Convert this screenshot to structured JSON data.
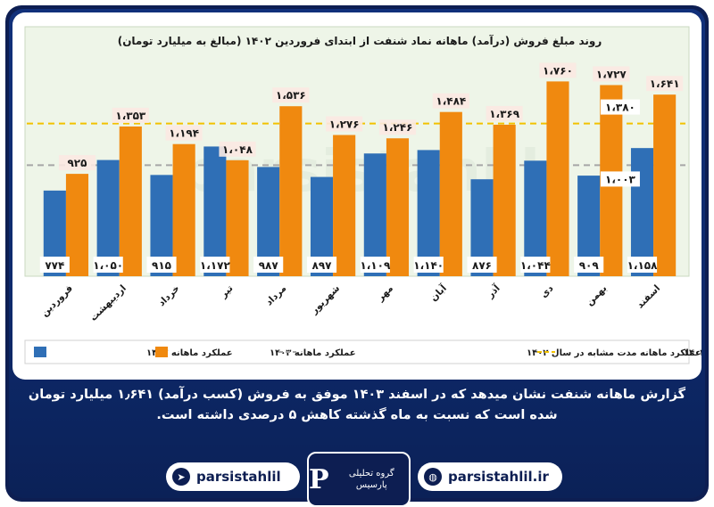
{
  "chart_data": {
    "type": "bar",
    "title": "روند مبلغ فروش (درآمد) ماهانه نماد شنفت از ابتدای فروردین ۱۴۰۲ (مبالغ به میلیارد تومان)",
    "categories": [
      "فروردین",
      "اردیبهشت",
      "خرداد",
      "تیر",
      "مرداد",
      "شهریور",
      "مهر",
      "آبان",
      "آذر",
      "دی",
      "بهمن",
      "اسفند"
    ],
    "series": [
      {
        "name": "عملکرد ماهانه ۱۴۰۲",
        "color": "#2f6fb6",
        "values": [
          774,
          1050,
          915,
          1172,
          987,
          897,
          1109,
          1140,
          876,
          1044,
          909,
          1158
        ],
        "labels": [
          "۷۷۴",
          "۱،۰۵۰",
          "۹۱۵",
          "۱،۱۷۲",
          "۹۸۷",
          "۸۹۷",
          "۱،۱۰۹",
          "۱،۱۴۰",
          "۸۷۶",
          "۱،۰۴۴",
          "۹۰۹",
          "۱،۱۵۸"
        ]
      },
      {
        "name": "عملکرد ماهانه ۱۴۰۳",
        "color": "#f0890f",
        "values": [
          925,
          1353,
          1194,
          1048,
          1536,
          1276,
          1246,
          1484,
          1369,
          1760,
          1727,
          1641
        ],
        "labels": [
          "۹۲۵",
          "۱،۳۵۳",
          "۱،۱۹۴",
          "۱،۰۴۸",
          "۱،۵۳۶",
          "۱،۲۷۶",
          "۱،۲۴۶",
          "۱،۴۸۴",
          "۱،۳۶۹",
          "۱،۷۶۰",
          "۱،۷۲۷",
          "۱،۶۴۱"
        ]
      }
    ],
    "reference_lines": [
      {
        "name": "میانگین عملکرد ماهانه ۱۴۰۳",
        "value": 1380,
        "label": "۱،۳۸۰",
        "color": "#f2c200"
      },
      {
        "name": "میانگین عملکرد ماهانه مدت مشابه در سال ۱۴۰۲",
        "value": 1003,
        "label": "۱،۰۰۳",
        "color": "#a6a6a6"
      }
    ],
    "ylim": [
      0,
      1900
    ],
    "grid": false,
    "legend_position": "bottom"
  },
  "caption": "گزارش ماهانه شنفت نشان میدهد که در اسفند ۱۴۰۳ موفق به فروش (کسب درآمد) ۱٫۶۴۱ میلیارد تومان شده است که نسبت به ماه گذشته کاهش ۵ درصدی داشته است.",
  "footer": {
    "telegram_handle": "parsistahlil",
    "website": "parsistahlil.ir",
    "logo_text": "گروه تحلیلی پارسیس",
    "telegram_icon": "telegram-icon",
    "web_icon": "globe-icon"
  },
  "watermark": "parsistahlil"
}
